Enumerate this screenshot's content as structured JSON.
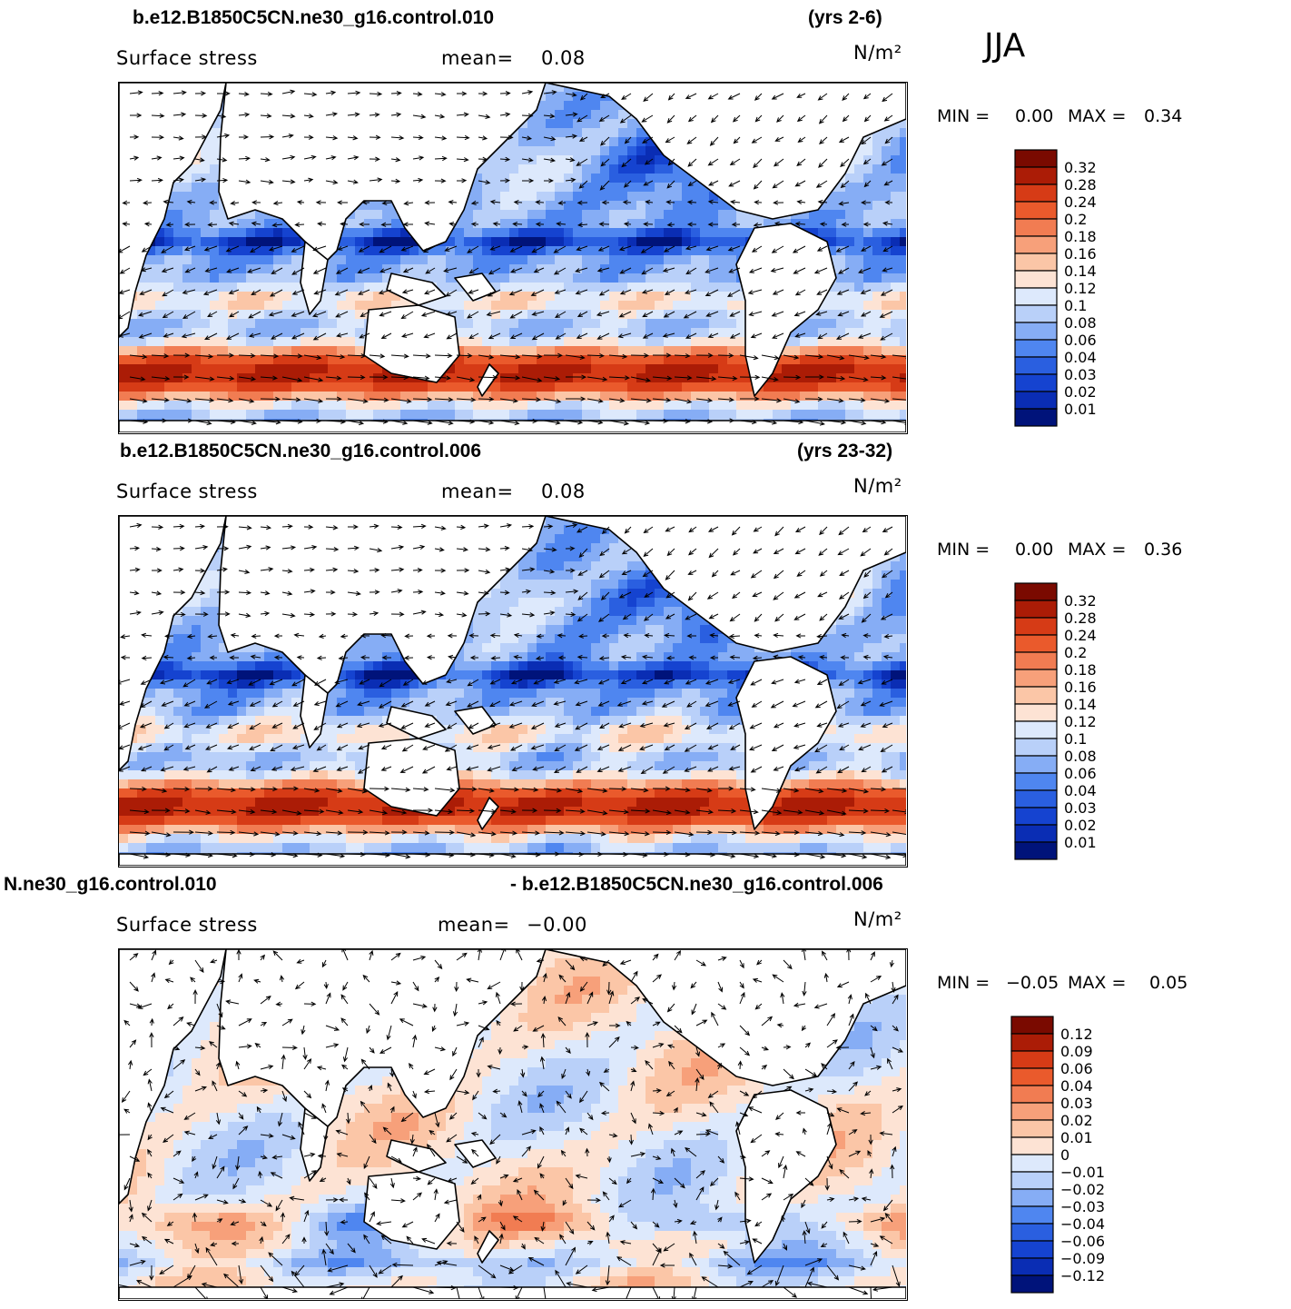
{
  "figure": {
    "season": "JJA",
    "panels": [
      {
        "case_title": "b.e12.B1850C5CN.ne30_g16.control.010",
        "years": "(yrs 2-6)",
        "variable": "Surface stress",
        "mean_label": "mean=",
        "mean_value": "0.08",
        "units": "N/m²",
        "min_label": "MIN =",
        "min_value": "0.00",
        "max_label": "MAX =",
        "max_value": "0.34",
        "colorbar_labels": [
          "0.32",
          "0.28",
          "0.24",
          "0.2",
          "0.18",
          "0.16",
          "0.14",
          "0.12",
          "0.1",
          "0.08",
          "0.06",
          "0.04",
          "0.03",
          "0.02",
          "0.01"
        ]
      },
      {
        "case_title": "b.e12.B1850C5CN.ne30_g16.control.006",
        "years": "(yrs 23-32)",
        "variable": "Surface stress",
        "mean_label": "mean=",
        "mean_value": "0.08",
        "units": "N/m²",
        "min_label": "MIN =",
        "min_value": "0.00",
        "max_label": "MAX =",
        "max_value": "0.36",
        "colorbar_labels": [
          "0.32",
          "0.28",
          "0.24",
          "0.2",
          "0.18",
          "0.16",
          "0.14",
          "0.12",
          "0.1",
          "0.08",
          "0.06",
          "0.04",
          "0.03",
          "0.02",
          "0.01"
        ]
      },
      {
        "case_title_left": "N.ne30_g16.control.010",
        "case_title_right": "- b.e12.B1850C5CN.ne30_g16.control.006",
        "variable": "Surface stress",
        "mean_label": "mean=",
        "mean_value": "−0.00",
        "units": "N/m²",
        "min_label": "MIN =",
        "min_value": "−0.05",
        "max_label": "MAX =",
        "max_value": "0.05",
        "colorbar_labels": [
          "0.12",
          "0.09",
          "0.06",
          "0.04",
          "0.03",
          "0.02",
          "0.01",
          "0",
          "−0.01",
          "−0.02",
          "−0.03",
          "−0.04",
          "−0.06",
          "−0.09",
          "−0.12"
        ]
      }
    ]
  },
  "chart_data": [
    {
      "type": "heatmap",
      "title": "b.e12.B1850C5CN.ne30_g16.control.010",
      "description_field": "Surface stress",
      "units": "N/m²",
      "mean": 0.08,
      "min": 0.0,
      "max": 0.34,
      "levels": [
        0.01,
        0.02,
        0.03,
        0.04,
        0.06,
        0.08,
        0.1,
        0.12,
        0.14,
        0.16,
        0.18,
        0.2,
        0.24,
        0.28,
        0.32
      ],
      "palette": [
        "#00137a",
        "#0a2db4",
        "#1543d0",
        "#2a5fe0",
        "#4f86f0",
        "#86adf5",
        "#b9d0f9",
        "#dde9fc",
        "#fde3d4",
        "#fbc6a7",
        "#f7a07a",
        "#f17c52",
        "#ea5a2c",
        "#d63b16",
        "#ab1c06",
        "#7a0a00"
      ],
      "vectors": true
    },
    {
      "type": "heatmap",
      "title": "b.e12.B1850C5CN.ne30_g16.control.006",
      "description_field": "Surface stress",
      "units": "N/m²",
      "mean": 0.08,
      "min": 0.0,
      "max": 0.36,
      "levels": [
        0.01,
        0.02,
        0.03,
        0.04,
        0.06,
        0.08,
        0.1,
        0.12,
        0.14,
        0.16,
        0.18,
        0.2,
        0.24,
        0.28,
        0.32
      ],
      "palette": [
        "#00137a",
        "#0a2db4",
        "#1543d0",
        "#2a5fe0",
        "#4f86f0",
        "#86adf5",
        "#b9d0f9",
        "#dde9fc",
        "#fde3d4",
        "#fbc6a7",
        "#f7a07a",
        "#f17c52",
        "#ea5a2c",
        "#d63b16",
        "#ab1c06",
        "#7a0a00"
      ],
      "vectors": true
    },
    {
      "type": "heatmap",
      "title": "N.ne30_g16.control.010 - b.e12.B1850C5CN.ne30_g16.control.006",
      "description_field": "Surface stress",
      "units": "N/m²",
      "mean": -0.0,
      "min": -0.05,
      "max": 0.05,
      "levels": [
        -0.12,
        -0.09,
        -0.06,
        -0.04,
        -0.03,
        -0.02,
        -0.01,
        0,
        0.01,
        0.02,
        0.03,
        0.04,
        0.06,
        0.09,
        0.12
      ],
      "palette": [
        "#00137a",
        "#0a2db4",
        "#1543d0",
        "#2a5fe0",
        "#4f86f0",
        "#86adf5",
        "#b9d0f9",
        "#dde9fc",
        "#fde3d4",
        "#fbc6a7",
        "#f7a07a",
        "#f17c52",
        "#ea5a2c",
        "#d63b16",
        "#ab1c06",
        "#7a0a00"
      ],
      "vectors": true
    }
  ]
}
